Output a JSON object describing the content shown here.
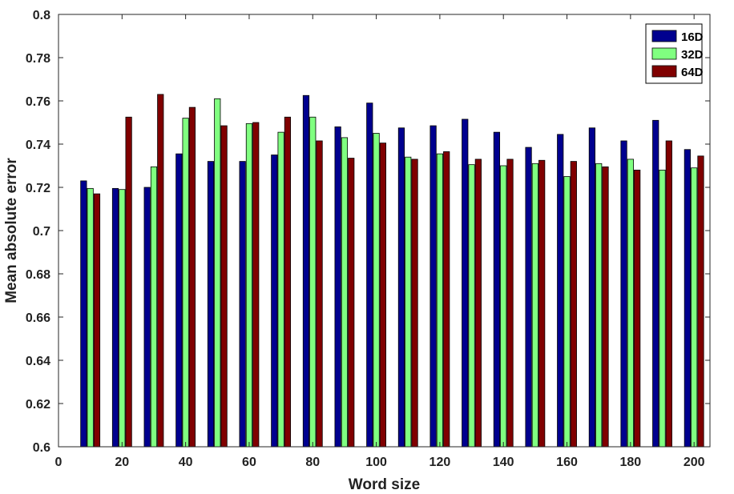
{
  "chart_data": {
    "type": "bar",
    "title": "",
    "xlabel": "Word size",
    "ylabel": "Mean absolute error",
    "xlim": [
      0,
      205
    ],
    "ylim": [
      0.6,
      0.8
    ],
    "xticks": [
      0,
      20,
      40,
      60,
      80,
      100,
      120,
      140,
      160,
      180,
      200
    ],
    "yticks": [
      0.6,
      0.62,
      0.64,
      0.66,
      0.68,
      0.7,
      0.72,
      0.74,
      0.76,
      0.78,
      0.8
    ],
    "ytick_labels": [
      "0.6",
      "0.62",
      "0.64",
      "0.66",
      "0.68",
      "0.7",
      "0.72",
      "0.74",
      "0.76",
      "0.78",
      "0.8"
    ],
    "grid": false,
    "legend_position": "top-right",
    "x": [
      10,
      20,
      30,
      40,
      50,
      60,
      70,
      80,
      90,
      100,
      110,
      120,
      130,
      140,
      150,
      160,
      170,
      180,
      190,
      200
    ],
    "series": [
      {
        "name": "16D",
        "color": "#00008f",
        "values": [
          0.723,
          0.7195,
          0.72,
          0.7355,
          0.732,
          0.732,
          0.735,
          0.7625,
          0.748,
          0.759,
          0.7475,
          0.7485,
          0.7515,
          0.7455,
          0.7385,
          0.7445,
          0.7475,
          0.7415,
          0.751,
          0.7375
        ]
      },
      {
        "name": "32D",
        "color": "#80ff80",
        "values": [
          0.7195,
          0.719,
          0.7295,
          0.752,
          0.761,
          0.7495,
          0.7455,
          0.7525,
          0.743,
          0.745,
          0.734,
          0.7355,
          0.7305,
          0.73,
          0.731,
          0.725,
          0.731,
          0.733,
          0.728,
          0.729
        ]
      },
      {
        "name": "64D",
        "color": "#800000",
        "values": [
          0.717,
          0.7525,
          0.763,
          0.757,
          0.7485,
          0.75,
          0.7525,
          0.7415,
          0.7335,
          0.7405,
          0.733,
          0.7365,
          0.733,
          0.733,
          0.7325,
          0.732,
          0.7295,
          0.728,
          0.7415,
          0.7345
        ]
      }
    ]
  }
}
